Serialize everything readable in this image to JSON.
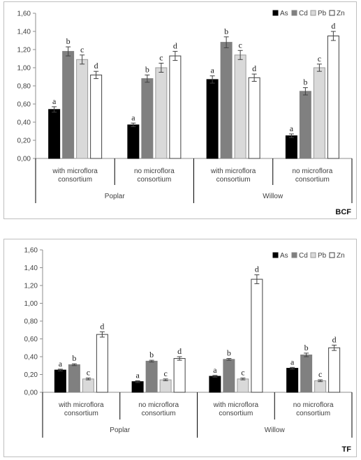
{
  "chart_data": [
    {
      "type": "bar",
      "title": "BCF",
      "ylim": [
        0,
        1.6
      ],
      "ytick_step": 0.2,
      "yticks": [
        "0,00",
        "0,20",
        "0,40",
        "0,60",
        "0,80",
        "1,00",
        "1,20",
        "1,40",
        "1,60"
      ],
      "groups": [
        "Poplar",
        "Willow"
      ],
      "categories": [
        "with microflora consortium",
        "no microflora consortium",
        "with microflora consortium",
        "no microflora consortium"
      ],
      "category_lines": [
        [
          "with microflora",
          "consortium"
        ],
        [
          "no microflora",
          "consortium"
        ],
        [
          "with microflora",
          "consortium"
        ],
        [
          "no microflora",
          "consortium"
        ]
      ],
      "legend_position": "top-right",
      "grid": false,
      "series": [
        {
          "name": "As",
          "color": "#000000",
          "values": [
            0.54,
            0.37,
            0.87,
            0.25
          ],
          "errors": [
            0.03,
            0.02,
            0.04,
            0.02
          ],
          "letters": [
            "a",
            "a",
            "a",
            "a"
          ]
        },
        {
          "name": "Cd",
          "color": "#808080",
          "values": [
            1.18,
            0.88,
            1.28,
            0.74
          ],
          "errors": [
            0.05,
            0.04,
            0.06,
            0.04
          ],
          "letters": [
            "b",
            "b",
            "b",
            "b"
          ]
        },
        {
          "name": "Pb",
          "color": "#d9d9d9",
          "values": [
            1.09,
            1.0,
            1.14,
            1.0
          ],
          "errors": [
            0.05,
            0.05,
            0.05,
            0.04
          ],
          "letters": [
            "c",
            "c",
            "c",
            "c"
          ]
        },
        {
          "name": "Zn",
          "color": "#ffffff",
          "values": [
            0.92,
            1.13,
            0.89,
            1.35
          ],
          "errors": [
            0.04,
            0.05,
            0.04,
            0.05
          ],
          "letters": [
            "d",
            "d",
            "d",
            "d"
          ]
        }
      ]
    },
    {
      "type": "bar",
      "title": "TF",
      "ylim": [
        0,
        1.6
      ],
      "ytick_step": 0.2,
      "yticks": [
        "0,00",
        "0,20",
        "0,40",
        "0,60",
        "0,80",
        "1,00",
        "1,20",
        "1,40",
        "1,60"
      ],
      "groups": [
        "Poplar",
        "Willow"
      ],
      "categories": [
        "with microflora consortium",
        "no microflora consortium",
        "with microflora consortium",
        "no microflora consortium"
      ],
      "category_lines": [
        [
          "with microflora",
          "consortium"
        ],
        [
          "no microflora",
          "consortium"
        ],
        [
          "with microflora",
          "consortium"
        ],
        [
          "no microflora",
          "consortium"
        ]
      ],
      "legend_position": "top-right",
      "grid": false,
      "series": [
        {
          "name": "As",
          "color": "#000000",
          "values": [
            0.25,
            0.12,
            0.18,
            0.27
          ],
          "errors": [
            0.01,
            0.01,
            0.01,
            0.01
          ],
          "letters": [
            "a",
            "a",
            "a",
            "a"
          ]
        },
        {
          "name": "Cd",
          "color": "#808080",
          "values": [
            0.31,
            0.35,
            0.37,
            0.42
          ],
          "errors": [
            0.01,
            0.01,
            0.01,
            0.02
          ],
          "letters": [
            "b",
            "b",
            "b",
            "b"
          ]
        },
        {
          "name": "Pb",
          "color": "#d9d9d9",
          "values": [
            0.15,
            0.14,
            0.15,
            0.13
          ],
          "errors": [
            0.01,
            0.01,
            0.01,
            0.01
          ],
          "letters": [
            "c",
            "c",
            "c",
            "c"
          ]
        },
        {
          "name": "Zn",
          "color": "#ffffff",
          "values": [
            0.65,
            0.38,
            1.27,
            0.5
          ],
          "errors": [
            0.03,
            0.02,
            0.05,
            0.03
          ],
          "letters": [
            "d",
            "d",
            "d",
            "d"
          ]
        }
      ]
    }
  ]
}
